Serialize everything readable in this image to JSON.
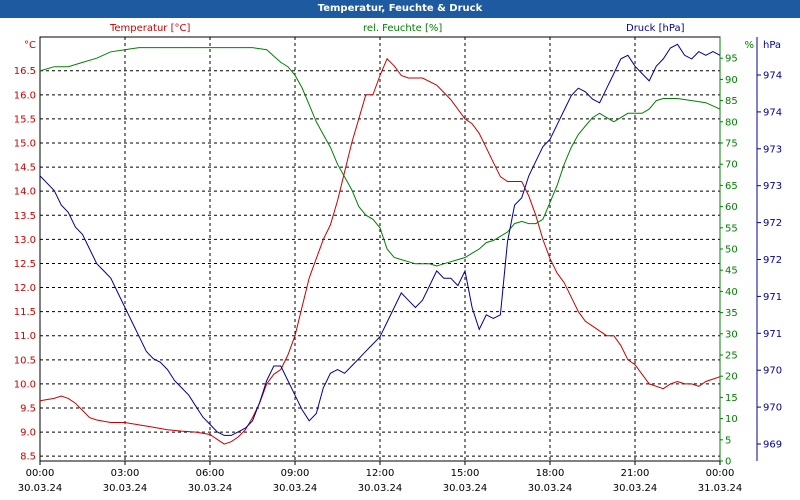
{
  "window": {
    "title": "Temperatur, Feuchte & Druck"
  },
  "colors": {
    "titlebar": "#1e5aa0",
    "temperature": "#cc0000",
    "humidity": "#008000",
    "pressure": "#00009a",
    "grid": "#000000"
  },
  "chart_data": {
    "type": "line",
    "title": "Temperatur, Feuchte & Druck",
    "grid": true,
    "x_ticks": [
      {
        "time": "00:00",
        "date": "30.03.24"
      },
      {
        "time": "03:00",
        "date": "30.03.24"
      },
      {
        "time": "06:00",
        "date": "30.03.24"
      },
      {
        "time": "09:00",
        "date": "30.03.24"
      },
      {
        "time": "12:00",
        "date": "30.03.24"
      },
      {
        "time": "15:00",
        "date": "30.03.24"
      },
      {
        "time": "18:00",
        "date": "30.03.24"
      },
      {
        "time": "21:00",
        "date": "30.03.24"
      },
      {
        "time": "00:00",
        "date": "31.03.24"
      }
    ],
    "axes": {
      "temperature": {
        "label": "Temperatur [°C]",
        "unit": "°C",
        "ylim": [
          8.4,
          17.2
        ],
        "ticks": [
          "8.5",
          "9.0",
          "9.5",
          "10.0",
          "10.5",
          "11.0",
          "11.5",
          "12.0",
          "12.5",
          "13.0",
          "13.5",
          "14.0",
          "14.5",
          "15.0",
          "15.5",
          "16.0",
          "16.5"
        ]
      },
      "humidity": {
        "label": "rel. Feuchte [%]",
        "unit": "%",
        "ylim": [
          0,
          100
        ],
        "ticks": [
          "0",
          "5",
          "10",
          "15",
          "20",
          "25",
          "30",
          "35",
          "40",
          "45",
          "50",
          "55",
          "60",
          "65",
          "70",
          "75",
          "80",
          "85",
          "90",
          "95"
        ]
      },
      "pressure": {
        "label": "Druck [hPa]",
        "unit": "hPa",
        "ylim": [
          968.8,
          974.6
        ],
        "ticks": [
          "969",
          "970",
          "970",
          "971",
          "971",
          "972",
          "972",
          "973",
          "973",
          "974",
          "974"
        ]
      }
    },
    "series": [
      {
        "name": "Temperatur [°C]",
        "axis": "temperature",
        "points": [
          [
            0.0,
            9.65
          ],
          [
            0.5,
            9.7
          ],
          [
            0.75,
            9.75
          ],
          [
            1.0,
            9.7
          ],
          [
            1.25,
            9.6
          ],
          [
            1.5,
            9.45
          ],
          [
            1.75,
            9.3
          ],
          [
            2.0,
            9.25
          ],
          [
            2.5,
            9.2
          ],
          [
            3.0,
            9.2
          ],
          [
            3.5,
            9.15
          ],
          [
            4.0,
            9.1
          ],
          [
            4.5,
            9.05
          ],
          [
            5.0,
            9.02
          ],
          [
            5.5,
            9.0
          ],
          [
            6.0,
            8.95
          ],
          [
            6.25,
            8.85
          ],
          [
            6.5,
            8.75
          ],
          [
            6.75,
            8.8
          ],
          [
            7.0,
            8.9
          ],
          [
            7.25,
            9.05
          ],
          [
            7.5,
            9.3
          ],
          [
            7.75,
            9.6
          ],
          [
            8.0,
            10.0
          ],
          [
            8.25,
            10.2
          ],
          [
            8.5,
            10.3
          ],
          [
            8.75,
            10.6
          ],
          [
            9.0,
            11.0
          ],
          [
            9.25,
            11.6
          ],
          [
            9.5,
            12.2
          ],
          [
            9.75,
            12.6
          ],
          [
            10.0,
            13.0
          ],
          [
            10.25,
            13.3
          ],
          [
            10.5,
            13.8
          ],
          [
            10.75,
            14.4
          ],
          [
            11.0,
            15.0
          ],
          [
            11.25,
            15.5
          ],
          [
            11.5,
            16.0
          ],
          [
            11.75,
            16.0
          ],
          [
            12.0,
            16.4
          ],
          [
            12.25,
            16.75
          ],
          [
            12.5,
            16.6
          ],
          [
            12.75,
            16.4
          ],
          [
            13.0,
            16.35
          ],
          [
            13.5,
            16.35
          ],
          [
            14.0,
            16.2
          ],
          [
            14.5,
            15.9
          ],
          [
            15.0,
            15.5
          ],
          [
            15.25,
            15.4
          ],
          [
            15.5,
            15.2
          ],
          [
            15.75,
            14.9
          ],
          [
            16.0,
            14.6
          ],
          [
            16.25,
            14.3
          ],
          [
            16.5,
            14.2
          ],
          [
            17.0,
            14.2
          ],
          [
            17.25,
            13.9
          ],
          [
            17.5,
            13.5
          ],
          [
            17.75,
            13.0
          ],
          [
            18.0,
            12.6
          ],
          [
            18.25,
            12.3
          ],
          [
            18.5,
            12.1
          ],
          [
            18.75,
            11.8
          ],
          [
            19.0,
            11.5
          ],
          [
            19.25,
            11.3
          ],
          [
            19.5,
            11.2
          ],
          [
            19.75,
            11.1
          ],
          [
            20.0,
            11.0
          ],
          [
            20.25,
            11.0
          ],
          [
            20.5,
            10.8
          ],
          [
            20.75,
            10.5
          ],
          [
            21.0,
            10.4
          ],
          [
            21.25,
            10.2
          ],
          [
            21.5,
            10.0
          ],
          [
            21.75,
            9.95
          ],
          [
            22.0,
            9.9
          ],
          [
            22.25,
            10.0
          ],
          [
            22.5,
            10.05
          ],
          [
            22.75,
            10.0
          ],
          [
            23.0,
            10.0
          ],
          [
            23.25,
            9.95
          ],
          [
            23.5,
            10.05
          ],
          [
            23.75,
            10.1
          ],
          [
            24.0,
            10.15
          ]
        ]
      },
      {
        "name": "rel. Feuchte [%]",
        "axis": "humidity",
        "points": [
          [
            0.0,
            92
          ],
          [
            0.5,
            93
          ],
          [
            1.0,
            93
          ],
          [
            1.5,
            94
          ],
          [
            2.0,
            95
          ],
          [
            2.5,
            96.5
          ],
          [
            3.0,
            97
          ],
          [
            3.5,
            97.5
          ],
          [
            4.0,
            97.5
          ],
          [
            4.5,
            97.5
          ],
          [
            5.0,
            97.5
          ],
          [
            5.5,
            97.5
          ],
          [
            6.0,
            97.5
          ],
          [
            6.5,
            97.5
          ],
          [
            7.0,
            97.5
          ],
          [
            7.5,
            97.5
          ],
          [
            8.0,
            97
          ],
          [
            8.25,
            95.5
          ],
          [
            8.5,
            94
          ],
          [
            8.75,
            93
          ],
          [
            9.0,
            91
          ],
          [
            9.25,
            88
          ],
          [
            9.5,
            84
          ],
          [
            9.75,
            80
          ],
          [
            10.0,
            77
          ],
          [
            10.25,
            74
          ],
          [
            10.5,
            70
          ],
          [
            10.75,
            67
          ],
          [
            11.0,
            64
          ],
          [
            11.25,
            60
          ],
          [
            11.5,
            58
          ],
          [
            11.75,
            57
          ],
          [
            12.0,
            55
          ],
          [
            12.25,
            50
          ],
          [
            12.5,
            48
          ],
          [
            12.75,
            47.5
          ],
          [
            13.0,
            47
          ],
          [
            13.25,
            46.5
          ],
          [
            13.5,
            46.5
          ],
          [
            13.75,
            46.5
          ],
          [
            14.0,
            46
          ],
          [
            14.25,
            46.5
          ],
          [
            14.5,
            47
          ],
          [
            14.75,
            47.5
          ],
          [
            15.0,
            48
          ],
          [
            15.25,
            49
          ],
          [
            15.5,
            50
          ],
          [
            15.75,
            51.5
          ],
          [
            16.0,
            52
          ],
          [
            16.25,
            53
          ],
          [
            16.5,
            54
          ],
          [
            16.75,
            56
          ],
          [
            17.0,
            56.5
          ],
          [
            17.25,
            56
          ],
          [
            17.5,
            56
          ],
          [
            17.75,
            57
          ],
          [
            18.0,
            61
          ],
          [
            18.25,
            65
          ],
          [
            18.5,
            70
          ],
          [
            18.75,
            74
          ],
          [
            19.0,
            77
          ],
          [
            19.25,
            79
          ],
          [
            19.5,
            81
          ],
          [
            19.75,
            82
          ],
          [
            20.0,
            81
          ],
          [
            20.25,
            80
          ],
          [
            20.5,
            81
          ],
          [
            20.75,
            82
          ],
          [
            21.0,
            82
          ],
          [
            21.25,
            82
          ],
          [
            21.5,
            83
          ],
          [
            21.75,
            85
          ],
          [
            22.0,
            85.5
          ],
          [
            22.5,
            85.5
          ],
          [
            23.0,
            85
          ],
          [
            23.5,
            84.5
          ],
          [
            24.0,
            83
          ]
        ]
      },
      {
        "name": "Druck [hPa]",
        "axis": "pressure",
        "points": [
          [
            0.0,
            972.7
          ],
          [
            0.25,
            972.6
          ],
          [
            0.5,
            972.5
          ],
          [
            0.75,
            972.3
          ],
          [
            1.0,
            972.2
          ],
          [
            1.25,
            972.0
          ],
          [
            1.5,
            971.9
          ],
          [
            1.75,
            971.7
          ],
          [
            2.0,
            971.5
          ],
          [
            2.25,
            971.4
          ],
          [
            2.5,
            971.3
          ],
          [
            2.75,
            971.1
          ],
          [
            3.0,
            970.9
          ],
          [
            3.25,
            970.7
          ],
          [
            3.5,
            970.5
          ],
          [
            3.75,
            970.3
          ],
          [
            4.0,
            970.2
          ],
          [
            4.25,
            970.15
          ],
          [
            4.5,
            970.05
          ],
          [
            4.75,
            969.9
          ],
          [
            5.0,
            969.8
          ],
          [
            5.25,
            969.7
          ],
          [
            5.5,
            969.55
          ],
          [
            5.75,
            969.4
          ],
          [
            6.0,
            969.3
          ],
          [
            6.25,
            969.2
          ],
          [
            6.5,
            969.15
          ],
          [
            6.75,
            969.15
          ],
          [
            7.0,
            969.2
          ],
          [
            7.25,
            969.25
          ],
          [
            7.5,
            969.35
          ],
          [
            7.75,
            969.6
          ],
          [
            8.0,
            969.9
          ],
          [
            8.25,
            970.1
          ],
          [
            8.5,
            970.1
          ],
          [
            8.75,
            969.9
          ],
          [
            9.0,
            969.7
          ],
          [
            9.25,
            969.5
          ],
          [
            9.5,
            969.35
          ],
          [
            9.75,
            969.45
          ],
          [
            10.0,
            969.8
          ],
          [
            10.25,
            970.0
          ],
          [
            10.5,
            970.05
          ],
          [
            10.75,
            970.0
          ],
          [
            11.0,
            970.1
          ],
          [
            11.25,
            970.2
          ],
          [
            11.5,
            970.3
          ],
          [
            11.75,
            970.4
          ],
          [
            12.0,
            970.5
          ],
          [
            12.25,
            970.7
          ],
          [
            12.5,
            970.9
          ],
          [
            12.75,
            971.1
          ],
          [
            13.0,
            971.0
          ],
          [
            13.25,
            970.9
          ],
          [
            13.5,
            971.0
          ],
          [
            13.75,
            971.2
          ],
          [
            14.0,
            971.4
          ],
          [
            14.25,
            971.3
          ],
          [
            14.5,
            971.3
          ],
          [
            14.75,
            971.2
          ],
          [
            15.0,
            971.4
          ],
          [
            15.25,
            970.9
          ],
          [
            15.5,
            970.6
          ],
          [
            15.75,
            970.8
          ],
          [
            16.0,
            970.75
          ],
          [
            16.25,
            970.8
          ],
          [
            16.5,
            971.8
          ],
          [
            16.75,
            972.3
          ],
          [
            17.0,
            972.4
          ],
          [
            17.25,
            972.7
          ],
          [
            17.5,
            972.9
          ],
          [
            17.75,
            973.1
          ],
          [
            18.0,
            973.2
          ],
          [
            18.25,
            973.4
          ],
          [
            18.5,
            973.6
          ],
          [
            18.75,
            973.8
          ],
          [
            19.0,
            973.9
          ],
          [
            19.25,
            973.85
          ],
          [
            19.5,
            973.75
          ],
          [
            19.75,
            973.7
          ],
          [
            20.0,
            973.9
          ],
          [
            20.25,
            974.1
          ],
          [
            20.5,
            974.3
          ],
          [
            20.75,
            974.35
          ],
          [
            21.0,
            974.2
          ],
          [
            21.25,
            974.1
          ],
          [
            21.5,
            974.0
          ],
          [
            21.75,
            974.2
          ],
          [
            22.0,
            974.3
          ],
          [
            22.25,
            974.45
          ],
          [
            22.5,
            974.5
          ],
          [
            22.75,
            974.35
          ],
          [
            23.0,
            974.3
          ],
          [
            23.25,
            974.4
          ],
          [
            23.5,
            974.35
          ],
          [
            23.75,
            974.4
          ],
          [
            24.0,
            974.35
          ]
        ]
      }
    ]
  }
}
